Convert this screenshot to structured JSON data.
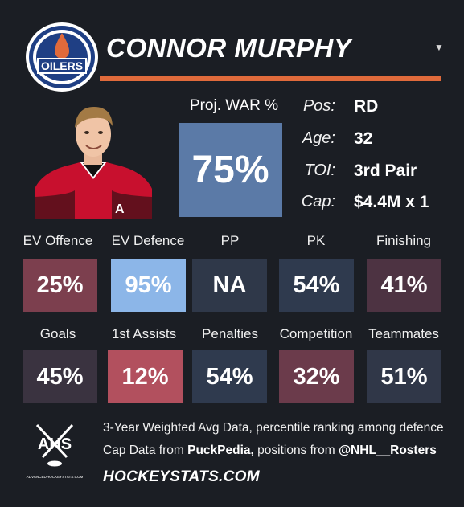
{
  "header": {
    "player_name": "CONNOR MURPHY",
    "team_logo_text": "OILERS",
    "accent_color": "#e06a3b"
  },
  "war": {
    "label": "Proj. WAR %",
    "value": "75%",
    "color": "#5b7aa7"
  },
  "info": [
    {
      "label": "Pos:",
      "value": "RD"
    },
    {
      "label": "Age:",
      "value": "32"
    },
    {
      "label": "TOI:",
      "value": "3rd Pair"
    },
    {
      "label": "Cap:",
      "value": "$4.4M x 1"
    }
  ],
  "stats_row1": [
    {
      "label": "EV Offence",
      "value": "25%",
      "color": "#7c3f4e"
    },
    {
      "label": "EV Defence",
      "value": "95%",
      "color": "#8cb6e8"
    },
    {
      "label": "PP",
      "value": "NA",
      "color": "#2f3849"
    },
    {
      "label": "PK",
      "value": "54%",
      "color": "#2f3a4e"
    },
    {
      "label": "Finishing",
      "value": "41%",
      "color": "#4d3342"
    }
  ],
  "stats_row2": [
    {
      "label": "Goals",
      "value": "45%",
      "color": "#3a3340"
    },
    {
      "label": "1st Assists",
      "value": "12%",
      "color": "#b2505e"
    },
    {
      "label": "Penalties",
      "value": "54%",
      "color": "#2f3a4e"
    },
    {
      "label": "Competition",
      "value": "32%",
      "color": "#6b3b4b"
    },
    {
      "label": "Teammates",
      "value": "51%",
      "color": "#303748"
    }
  ],
  "footer": {
    "logo_text": "AHS",
    "logo_subtext": "ADVANCEDHOCKEYSTATS.COM",
    "line1": "3-Year Weighted Avg Data, percentile ranking among defence",
    "line2_prefix": "Cap Data from ",
    "line2_source1": "PuckPedia,",
    "line2_mid": " positions from ",
    "line2_source2": "@NHL__Rosters",
    "site": "HOCKEYSTATS.COM"
  }
}
